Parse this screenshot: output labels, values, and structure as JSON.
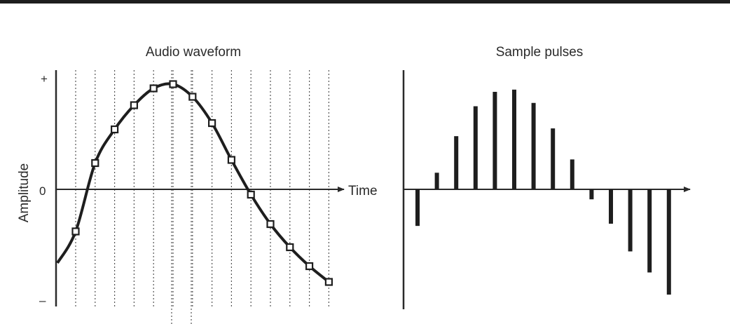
{
  "left_panel": {
    "title": "Audio waveform",
    "y_axis_label": "Amplitude",
    "y_tick_plus": "+",
    "y_tick_zero": "0",
    "y_tick_minus": "–",
    "x_axis_label": "Time"
  },
  "right_panel": {
    "title": "Sample pulses"
  },
  "waveform": {
    "sample_count": 14,
    "sample_amplitudes": [
      -0.4,
      0.25,
      0.57,
      0.8,
      0.96,
      1.0,
      0.88,
      0.63,
      0.28,
      -0.05,
      -0.33,
      -0.55,
      -0.73,
      -0.88
    ],
    "pulse_amplitudes": [
      -0.33,
      0.15,
      0.48,
      0.75,
      0.88,
      0.9,
      0.78,
      0.55,
      0.27,
      -0.09,
      -0.31,
      -0.56,
      -0.75,
      -0.95
    ],
    "colors": {
      "line": "#1e1e1e",
      "grid": "#555555"
    }
  }
}
